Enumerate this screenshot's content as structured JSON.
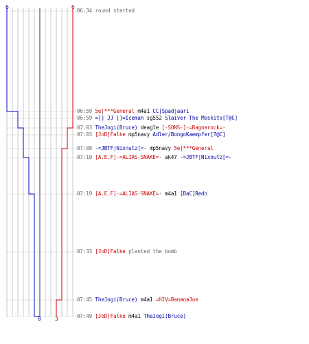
{
  "colors": {
    "blue": "#0000c0",
    "red": "#c80000",
    "gray": "#999999",
    "grid": "#bbbbbb",
    "mid": "#555555"
  },
  "counters": {
    "blue_start": "6",
    "red_start": "6",
    "blue_end": "0",
    "red_end": "3"
  },
  "events": [
    {
      "time": "06:34",
      "parts": [
        {
          "t": "round started",
          "c": "gray"
        }
      ]
    },
    {
      "time": "06:59",
      "parts": [
        {
          "t": "5e|***General",
          "c": "red"
        },
        {
          "t": " m4a1 ",
          "c": "black"
        },
        {
          "t": "CC|Spadjaari",
          "c": "blue"
        }
      ]
    },
    {
      "time": "06:59",
      "parts": [
        {
          "t": "=[] JJ []=Iceman",
          "c": "blue"
        },
        {
          "t": " sg552 ",
          "c": "black"
        },
        {
          "t": "Slaiver The Moskito[T@C]",
          "c": "blue"
        }
      ]
    },
    {
      "time": "07:03",
      "parts": [
        {
          "t": "TheJogi(Bruce)",
          "c": "blue"
        },
        {
          "t": " deagle ",
          "c": "black"
        },
        {
          "t": "[-SONS-]-=Ragnarock=-",
          "c": "red"
        }
      ]
    },
    {
      "time": "07:03",
      "parts": [
        {
          "t": "[JoD]Falke",
          "c": "red"
        },
        {
          "t": " mp5navy ",
          "c": "black"
        },
        {
          "t": "Adler/BongoKaempfer[T@C]",
          "c": "blue"
        }
      ]
    },
    {
      "time": "07:08",
      "parts": [
        {
          "t": "-=JBTF|Nixnutz[=-",
          "c": "blue"
        },
        {
          "t": " mp5navy ",
          "c": "black"
        },
        {
          "t": "5e|***General",
          "c": "red"
        }
      ]
    },
    {
      "time": "07:10",
      "parts": [
        {
          "t": "[A.E.F]-=ALIAS-SNAKE=-",
          "c": "red"
        },
        {
          "t": " ak47 ",
          "c": "black"
        },
        {
          "t": "-=JBTF|Nixnutz[=-",
          "c": "blue"
        }
      ]
    },
    {
      "time": "07:19",
      "parts": [
        {
          "t": "[A.E.F]-=ALIAS-SNAKE=-",
          "c": "red"
        },
        {
          "t": " m4a1 ",
          "c": "black"
        },
        {
          "t": "[BaC]Redn",
          "c": "blue"
        }
      ]
    },
    {
      "time": "07:33",
      "parts": [
        {
          "t": "[JoD]Falke",
          "c": "red"
        },
        {
          "t": " planted the bomb",
          "c": "gray"
        }
      ]
    },
    {
      "time": "07:45",
      "parts": [
        {
          "t": "TheJogi(Bruce)",
          "c": "blue"
        },
        {
          "t": " m4a1 ",
          "c": "black"
        },
        {
          "t": "=HIV=BananaJoe",
          "c": "red"
        }
      ]
    },
    {
      "time": "07:49",
      "parts": [
        {
          "t": "[JoD]Falke",
          "c": "red"
        },
        {
          "t": " m4a1 ",
          "c": "black"
        },
        {
          "t": "TheJogi(Bruce)",
          "c": "blue"
        }
      ]
    }
  ]
}
